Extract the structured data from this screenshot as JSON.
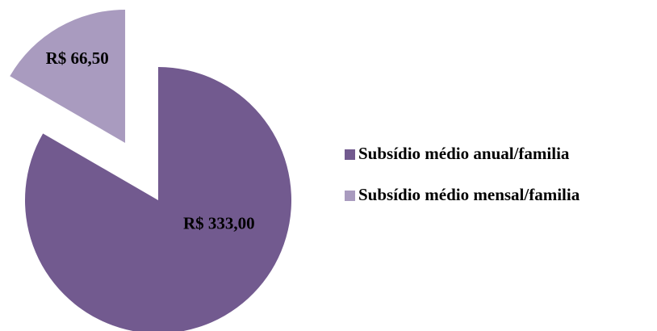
{
  "chart_data": {
    "type": "pie",
    "categories": [
      "Subsídio médio anual/familia",
      "Subsídio médio mensal/familia"
    ],
    "values": [
      333,
      66.5
    ],
    "value_labels": [
      "R$ 333,00",
      "R$ 66,50"
    ],
    "colors": [
      "#725a8f",
      "#a99bbf"
    ],
    "legend": "right"
  }
}
